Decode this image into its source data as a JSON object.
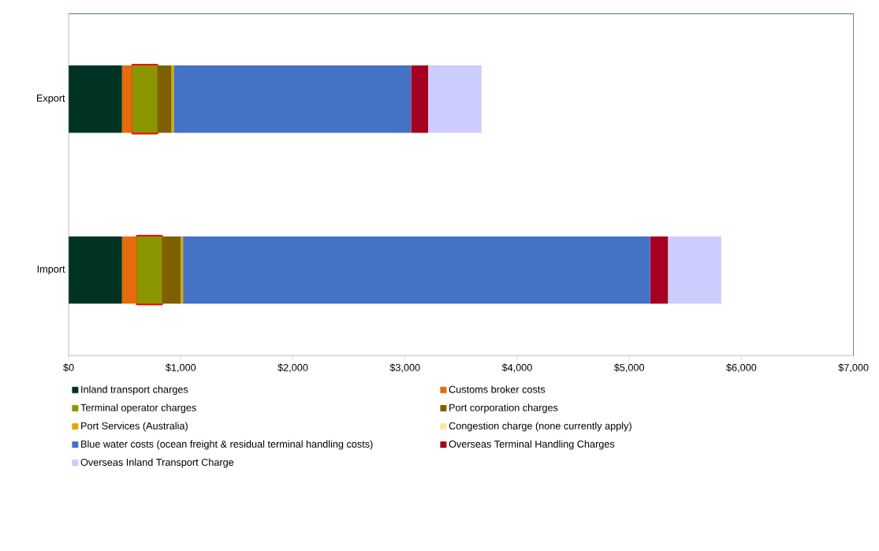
{
  "chart_data": {
    "type": "bar",
    "orientation": "horizontal",
    "stacked": true,
    "categories": [
      "Export",
      "Import"
    ],
    "series": [
      {
        "name": "Inland transport charges",
        "color": "#003324",
        "values": [
          476,
          476
        ]
      },
      {
        "name": "Customs broker costs",
        "color": "#e46c0a",
        "values": [
          90,
          131
        ]
      },
      {
        "name": "Terminal operator charges",
        "color": "#8a9600",
        "values": [
          227,
          227
        ]
      },
      {
        "name": "Port corporation charges",
        "color": "#7f6000",
        "values": [
          124,
          166
        ]
      },
      {
        "name": "Port Services (Australia)",
        "color": "#d9aa00",
        "values": [
          20,
          20
        ]
      },
      {
        "name": "Congestion charge (none currently apply)",
        "color": "#ffe699",
        "values": [
          0,
          0
        ]
      },
      {
        "name": "Blue water costs (ocean freight & residual terminal handling costs)",
        "color": "#4472c4",
        "values": [
          2117,
          4166
        ]
      },
      {
        "name": "Overseas Terminal Handling Charges",
        "color": "#a50021",
        "values": [
          152,
          159
        ]
      },
      {
        "name": "Overseas Inland Transport Charge",
        "color": "#ccccff",
        "values": [
          476,
          476
        ]
      }
    ],
    "xlim": [
      0,
      7000
    ],
    "xticks": [
      {
        "value": 0,
        "label": "$0"
      },
      {
        "value": 1000,
        "label": "$1,000"
      },
      {
        "value": 2000,
        "label": "$2,000"
      },
      {
        "value": 3000,
        "label": "$3,000"
      },
      {
        "value": 4000,
        "label": "$4,000"
      },
      {
        "value": 5000,
        "label": "$5,000"
      },
      {
        "value": 6000,
        "label": "$6,000"
      },
      {
        "value": 7000,
        "label": "$7,000"
      }
    ],
    "grid": false,
    "legend": "bottom"
  }
}
